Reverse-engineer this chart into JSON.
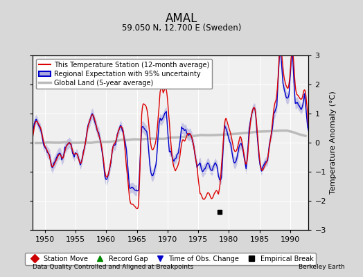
{
  "title": "AMAL",
  "subtitle": "59.050 N, 12.700 E (Sweden)",
  "ylabel": "Temperature Anomaly (°C)",
  "footer_left": "Data Quality Controlled and Aligned at Breakpoints",
  "footer_right": "Berkeley Earth",
  "xlim": [
    1948,
    1993
  ],
  "ylim": [
    -3,
    3
  ],
  "xticks": [
    1950,
    1955,
    1960,
    1965,
    1970,
    1975,
    1980,
    1985,
    1990
  ],
  "yticks": [
    -3,
    -2,
    -1,
    0,
    1,
    2,
    3
  ],
  "bg_color": "#d8d8d8",
  "plot_bg_color": "#f0f0f0",
  "grid_color": "#ffffff",
  "station_color": "#dd0000",
  "regional_color": "#0000cc",
  "regional_fill_color": "#aaaadd",
  "global_color": "#bbbbbb",
  "empirical_break_year": 1978.5,
  "empirical_break_val": -2.38,
  "legend_entries": [
    {
      "label": "This Temperature Station (12-month average)",
      "color": "#dd0000",
      "lw": 1.5
    },
    {
      "label": "Regional Expectation with 95% uncertainty",
      "color": "#0000cc",
      "fill": "#aaaadd",
      "lw": 1.5
    },
    {
      "label": "Global Land (5-year average)",
      "color": "#bbbbbb",
      "lw": 2.5
    }
  ],
  "bottom_legend": [
    {
      "label": "Station Move",
      "marker": "D",
      "color": "#cc0000"
    },
    {
      "label": "Record Gap",
      "marker": "^",
      "color": "#008800"
    },
    {
      "label": "Time of Obs. Change",
      "marker": "v",
      "color": "#0000cc"
    },
    {
      "label": "Empirical Break",
      "marker": "s",
      "color": "#000000"
    }
  ]
}
